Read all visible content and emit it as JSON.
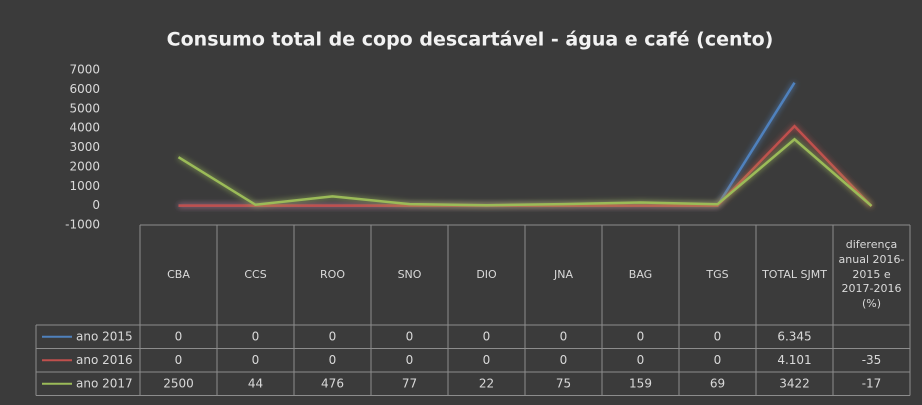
{
  "chart_data": {
    "type": "line",
    "title": "Consumo total de copo descartável - água e café (cento)",
    "categories": [
      "CBA",
      "CCS",
      "ROO",
      "SNO",
      "DIO",
      "JNA",
      "BAG",
      "TGS",
      "TOTAL SJMT",
      "diferença anual 2016-2015 e 2017-2016 (%)"
    ],
    "series": [
      {
        "name": "ano 2015",
        "color": "#4f81bd",
        "values": [
          0,
          0,
          0,
          0,
          0,
          0,
          0,
          0,
          6345,
          null
        ],
        "value_labels": [
          "0",
          "0",
          "0",
          "0",
          "0",
          "0",
          "0",
          "0",
          "6.345",
          null
        ]
      },
      {
        "name": "ano 2016",
        "color": "#c0504d",
        "values": [
          0,
          0,
          0,
          0,
          0,
          0,
          0,
          0,
          4101,
          -35
        ],
        "value_labels": [
          "0",
          "0",
          "0",
          "0",
          "0",
          "0",
          "0",
          "0",
          "4.101",
          "-35"
        ]
      },
      {
        "name": "ano 2017",
        "color": "#9bbb59",
        "values": [
          2500,
          44,
          476,
          77,
          22,
          75,
          159,
          69,
          3422,
          -17
        ]
      }
    ],
    "ylim": [
      -1000,
      7000
    ],
    "yticks": [
      -1000,
      0,
      1000,
      2000,
      3000,
      4000,
      5000,
      6000,
      7000
    ]
  }
}
